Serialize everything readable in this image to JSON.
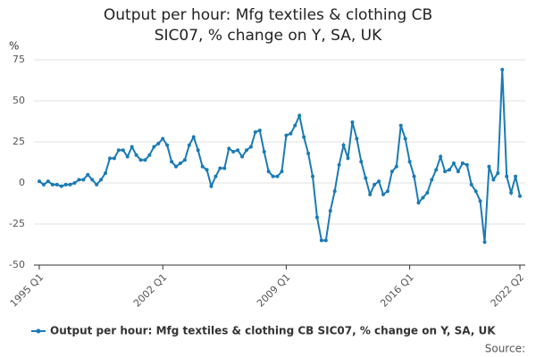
{
  "chart_data": {
    "type": "line",
    "title": "Output per hour: Mfg textiles & clothing CB SIC07, % change on Y, SA, UK",
    "y_label": "%",
    "source": "Source:",
    "categories": [
      "1995 Q1",
      null,
      null,
      null,
      null,
      null,
      null,
      null,
      null,
      null,
      null,
      null,
      null,
      null,
      null,
      null,
      null,
      null,
      null,
      null,
      null,
      null,
      null,
      null,
      null,
      null,
      null,
      null,
      "2002 Q1",
      null,
      null,
      null,
      null,
      null,
      null,
      null,
      null,
      null,
      null,
      null,
      null,
      null,
      null,
      null,
      null,
      null,
      null,
      null,
      null,
      null,
      null,
      null,
      null,
      null,
      null,
      null,
      "2009 Q1",
      null,
      null,
      null,
      null,
      null,
      null,
      null,
      null,
      null,
      null,
      null,
      null,
      null,
      null,
      null,
      null,
      null,
      null,
      null,
      null,
      null,
      null,
      null,
      null,
      null,
      null,
      null,
      "2016 Q1",
      null,
      null,
      null,
      null,
      null,
      null,
      null,
      null,
      null,
      null,
      null,
      null,
      null,
      null,
      null,
      null,
      null,
      null,
      null,
      null,
      null,
      null,
      null,
      null,
      "2022 Q2"
    ],
    "series": [
      {
        "name": "Output per hour: Mfg textiles & clothing CB SIC07, % change on Y, SA, UK",
        "color": "#1a7bb5",
        "values": [
          1,
          -1,
          1,
          -1,
          -1,
          -2,
          -1,
          -1,
          0,
          2,
          2,
          5,
          2,
          -1,
          2,
          6,
          15,
          15,
          20,
          20,
          16,
          22,
          17,
          14,
          14,
          17,
          22,
          24,
          27,
          23,
          13,
          10,
          12,
          14,
          23,
          28,
          20,
          10,
          8,
          -2,
          4,
          9,
          9,
          21,
          19,
          20,
          16,
          20,
          22,
          31,
          32,
          19,
          7,
          4,
          4,
          7,
          29,
          30,
          35,
          41,
          28,
          18,
          4,
          -21,
          -35,
          -35,
          -17,
          -5,
          11,
          23,
          15,
          37,
          27,
          13,
          3,
          -7,
          -1,
          1,
          -7,
          -5,
          7,
          10,
          35,
          27,
          13,
          4,
          -12,
          -9,
          -6,
          2,
          8,
          16,
          7,
          8,
          12,
          7,
          12,
          11,
          -1,
          -5,
          -11,
          -36,
          10,
          2,
          6,
          69,
          4,
          -6,
          4,
          -8
        ]
      }
    ],
    "ylim": [
      -50,
      75
    ],
    "yticks": [
      -50,
      -25,
      0,
      25,
      50,
      75
    ],
    "grid": true
  }
}
